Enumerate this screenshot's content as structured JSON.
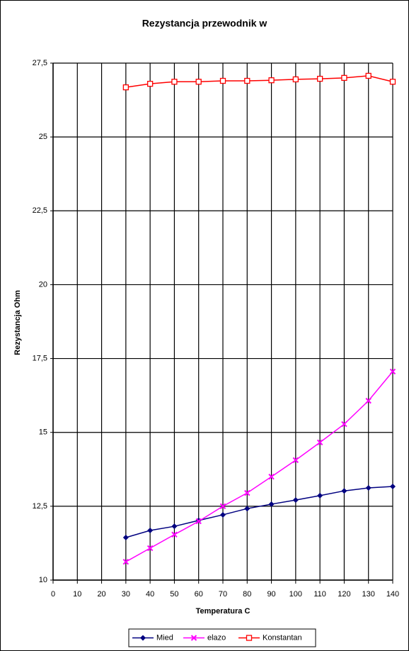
{
  "chart_data": {
    "type": "line",
    "title": "Rezystancja przewodnik   w",
    "x_label": "Temperatura C",
    "y_label": "Rezystancja Ohm",
    "x": [
      30,
      40,
      50,
      60,
      70,
      80,
      90,
      100,
      110,
      120,
      130,
      140
    ],
    "series": [
      {
        "name": "Mied",
        "color": "#000080",
        "marker": "diamond",
        "values": [
          11.44,
          11.68,
          11.82,
          12.02,
          12.21,
          12.42,
          12.57,
          12.71,
          12.86,
          13.02,
          13.12,
          13.17
        ]
      },
      {
        "name": "elazo",
        "color": "#ff00ff",
        "marker": "x",
        "values": [
          10.62,
          11.08,
          11.54,
          11.99,
          12.5,
          12.95,
          13.5,
          14.06,
          14.66,
          15.28,
          16.07,
          17.06
        ]
      },
      {
        "name": "Konstantan",
        "color": "#ff0000",
        "marker": "square",
        "values": [
          26.68,
          26.8,
          26.87,
          26.87,
          26.9,
          26.9,
          26.92,
          26.95,
          26.97,
          27.0,
          27.07,
          26.87
        ]
      }
    ],
    "xlim": [
      0,
      140
    ],
    "xticks": [
      0,
      10,
      20,
      30,
      40,
      50,
      60,
      70,
      80,
      90,
      100,
      110,
      120,
      130,
      140
    ],
    "ylim": [
      10,
      27.5
    ],
    "yticks": [
      10,
      {
        "value": 12.5,
        "label": "12,5"
      },
      15,
      {
        "value": 17.5,
        "label": "17,5"
      },
      20,
      {
        "value": 22.5,
        "label": "22,5"
      },
      25,
      {
        "value": 27.5,
        "label": "27,5"
      }
    ],
    "grid": true,
    "legend": "bottom"
  }
}
